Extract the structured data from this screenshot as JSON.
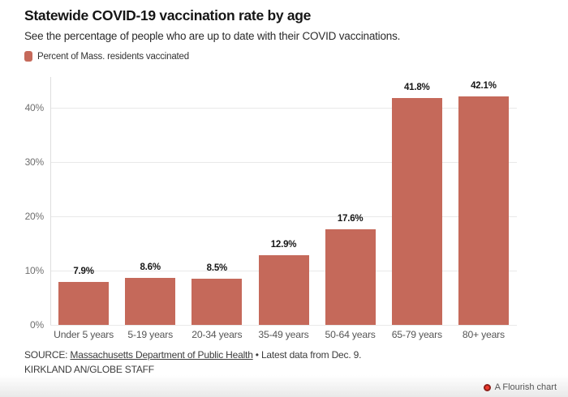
{
  "header": {
    "title": "Statewide COVID-19 vaccination rate by age",
    "subtitle": "See the percentage of people who are up to date with their COVID vaccinations."
  },
  "legend": {
    "label": "Percent of Mass. residents vaccinated",
    "swatch_color": "#c5695a"
  },
  "chart_data": {
    "type": "bar",
    "title": "Statewide COVID-19 vaccination rate by age",
    "categories": [
      "Under 5 years",
      "5-19 years",
      "20-34 years",
      "35-49 years",
      "50-64 years",
      "65-79 years",
      "80+ years"
    ],
    "values": [
      7.9,
      8.6,
      8.5,
      12.9,
      17.6,
      41.8,
      42.1
    ],
    "value_labels": [
      "7.9%",
      "8.6%",
      "8.5%",
      "12.9%",
      "17.6%",
      "41.8%",
      "42.1%"
    ],
    "series_name": "Percent of Mass. residents vaccinated",
    "bar_color": "#c5695a",
    "xlabel": "",
    "ylabel": "",
    "ylim": [
      0,
      45.7
    ],
    "yticks": [
      0,
      10,
      20,
      30,
      40
    ],
    "ytick_labels": [
      "0%",
      "10%",
      "20%",
      "30%",
      "40%"
    ],
    "grid": true,
    "gridline_color": "#e9e9e9",
    "legend_position": "top-left"
  },
  "footer": {
    "source_prefix": "SOURCE: ",
    "source_link": "Massachusetts Department of Public Health",
    "source_suffix": " • Latest data from Dec. 9.",
    "credit": "KIRKLAND AN/GLOBE STAFF"
  },
  "flourish": {
    "label": "A Flourish chart",
    "dot_color": "#ef3a2d"
  }
}
